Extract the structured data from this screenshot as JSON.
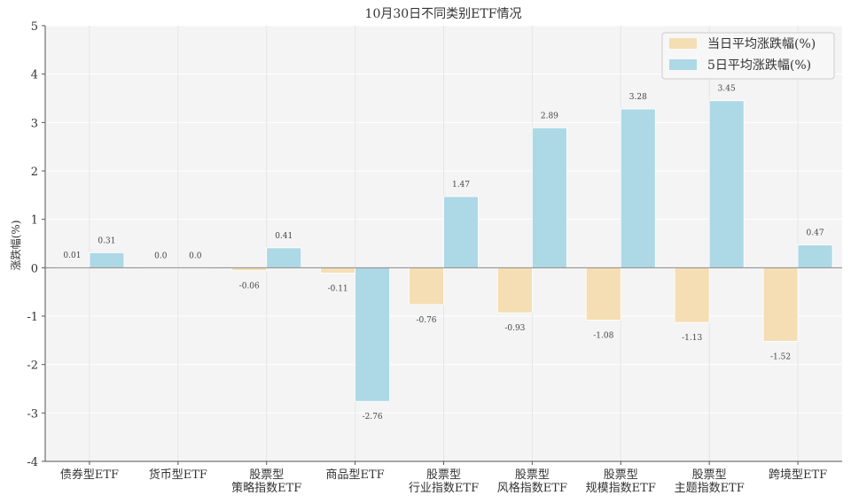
{
  "chart_data": {
    "type": "bar",
    "title": "10月30日不同类别ETF情况",
    "ylabel": "涨跌幅(%)",
    "xlabel": "",
    "ylim": [
      -4,
      5
    ],
    "yticks": [
      -4,
      -3,
      -2,
      -1,
      0,
      1,
      2,
      3,
      4,
      5
    ],
    "categories": [
      [
        "债券型ETF"
      ],
      [
        "货币型ETF"
      ],
      [
        "股票型",
        "策略指数ETF"
      ],
      [
        "商品型ETF"
      ],
      [
        "股票型",
        "行业指数ETF"
      ],
      [
        "股票型",
        "风格指数ETF"
      ],
      [
        "股票型",
        "规模指数ETF"
      ],
      [
        "股票型",
        "主题指数ETF"
      ],
      [
        "跨境型ETF"
      ]
    ],
    "series": [
      {
        "name": "当日平均涨跌幅(%)",
        "color": "#f5deb3",
        "values": [
          0.01,
          0.0,
          -0.06,
          -0.11,
          -0.76,
          -0.93,
          -1.08,
          -1.13,
          -1.52
        ],
        "labels": [
          "0.01",
          "0.0",
          "-0.06",
          "-0.11",
          "-0.76",
          "-0.93",
          "-1.08",
          "-1.13",
          "-1.52"
        ]
      },
      {
        "name": "5日平均涨跌幅(%)",
        "color": "#add8e6",
        "values": [
          0.31,
          0.0,
          0.41,
          -2.76,
          1.47,
          2.89,
          3.28,
          3.45,
          0.47
        ],
        "labels": [
          "0.31",
          "0.0",
          "0.41",
          "-2.76",
          "1.47",
          "2.89",
          "3.28",
          "3.45",
          "0.47"
        ]
      }
    ],
    "legend_position": "top-right",
    "grid": true,
    "background": "#f4f4f4"
  }
}
